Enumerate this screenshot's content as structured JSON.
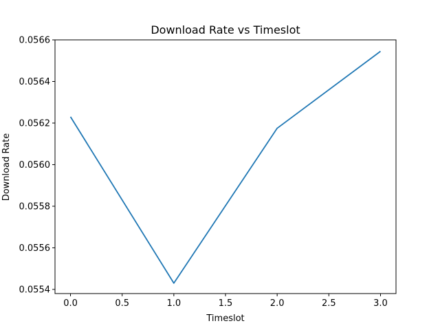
{
  "chart_data": {
    "type": "line",
    "title": "Download Rate vs Timeslot",
    "xlabel": "Timeslot",
    "ylabel": "Download Rate",
    "x": [
      0,
      1,
      2,
      3
    ],
    "series": [
      {
        "values": [
          0.05623,
          0.05543,
          0.056175,
          0.056545
        ]
      }
    ],
    "xlim": [
      -0.15,
      3.15
    ],
    "ylim": [
      0.05538,
      0.0566
    ],
    "xticks": [
      0,
      0.5,
      1,
      1.5,
      2,
      2.5,
      3
    ],
    "xtick_labels": [
      "0.0",
      "0.5",
      "1.0",
      "1.5",
      "2.0",
      "2.5",
      "3.0"
    ],
    "yticks": [
      0.0554,
      0.0556,
      0.0558,
      0.056,
      0.0562,
      0.0564,
      0.0566
    ],
    "ytick_labels": [
      "0.0554",
      "0.0556",
      "0.0558",
      "0.0560",
      "0.0562",
      "0.0564",
      "0.0566"
    ],
    "grid": false,
    "legend": false,
    "colors": {
      "line": "#1f77b4",
      "axes": "#000000"
    }
  }
}
